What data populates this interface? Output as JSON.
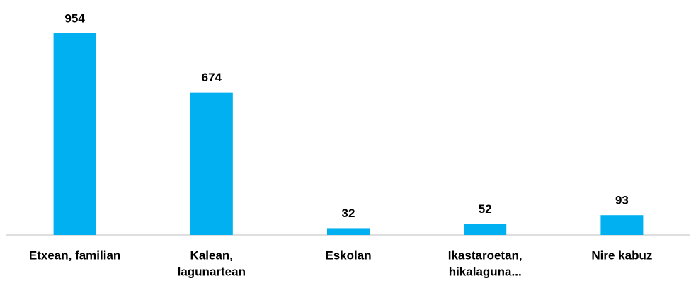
{
  "chart_data": {
    "type": "bar",
    "categories": [
      [
        "Etxean, familian"
      ],
      [
        "Kalean,",
        "lagunartean"
      ],
      [
        "Eskolan"
      ],
      [
        "Ikastaroetan,",
        "hikalaguna..."
      ],
      [
        "Nire kabuz"
      ]
    ],
    "values": [
      954,
      674,
      32,
      52,
      93
    ],
    "color": "#00b0f0"
  }
}
